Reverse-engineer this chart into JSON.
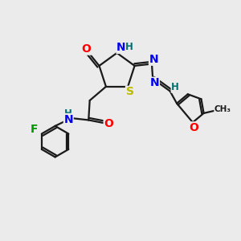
{
  "bg_color": "#ebebeb",
  "bond_color": "#1a1a1a",
  "atom_colors": {
    "O": "#ff0000",
    "N": "#0000ee",
    "S": "#bbbb00",
    "F": "#009900",
    "H": "#007070",
    "C": "#1a1a1a",
    "CH3": "#1a1a1a"
  },
  "lw": 1.6,
  "fs": 10,
  "fs_small": 8.5
}
